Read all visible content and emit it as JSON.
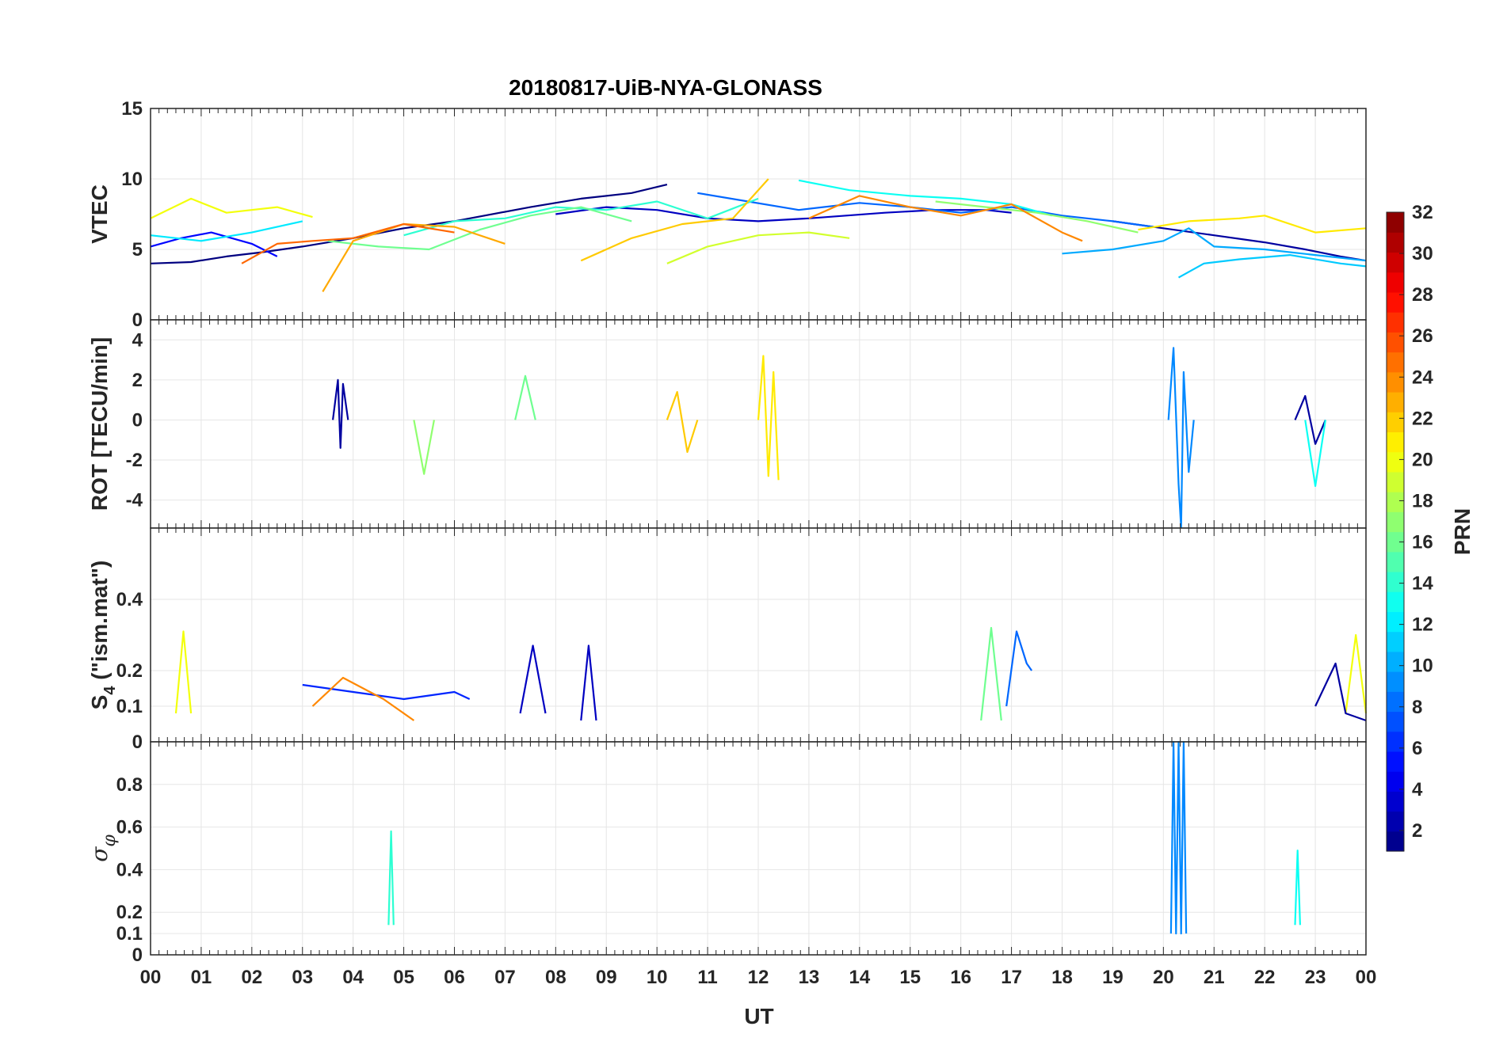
{
  "chart_data": {
    "type": "line",
    "title": "20180817-UiB-NYA-GLONASS",
    "xlabel": "UT",
    "x_range": [
      0,
      24
    ],
    "x_tick_labels": [
      "00",
      "01",
      "02",
      "03",
      "04",
      "05",
      "06",
      "07",
      "08",
      "09",
      "10",
      "11",
      "12",
      "13",
      "14",
      "15",
      "16",
      "17",
      "18",
      "19",
      "20",
      "21",
      "22",
      "23",
      "00"
    ],
    "panels": [
      {
        "id": "vtec",
        "ylabel": "VTEC",
        "ylim": [
          0,
          15
        ],
        "y_ticks": [
          0,
          5,
          10,
          15
        ],
        "y_tick_labels": [
          "0",
          "5",
          "10",
          "15"
        ],
        "series": [
          {
            "prn": 1,
            "x": [
              0,
              0.8,
              1.5,
              2.2,
              3.0,
              4.0,
              5.0,
              6.0,
              7.5,
              8.5,
              9.5,
              10.2
            ],
            "y": [
              4.0,
              4.1,
              4.5,
              4.8,
              5.2,
              5.8,
              6.5,
              7.0,
              8.0,
              8.6,
              9.0,
              9.6
            ]
          },
          {
            "prn": 3,
            "x": [
              8.0,
              9.0,
              10.0,
              11.0,
              12.0,
              13.0,
              14.5,
              15.5,
              16.5,
              17.0
            ],
            "y": [
              7.5,
              8.0,
              7.8,
              7.2,
              7.0,
              7.2,
              7.6,
              7.8,
              7.8,
              7.6
            ]
          },
          {
            "prn": 2,
            "x": [
              19.0,
              20.0,
              21.0,
              22.0,
              22.8,
              23.5,
              24.0
            ],
            "y": [
              7.0,
              6.5,
              6.0,
              5.5,
              5.0,
              4.5,
              4.2
            ]
          },
          {
            "prn": 5,
            "x": [
              0,
              0.6,
              1.2,
              2.0,
              2.5
            ],
            "y": [
              5.2,
              5.8,
              6.2,
              5.4,
              4.5
            ]
          },
          {
            "prn": 8,
            "x": [
              10.8,
              11.8,
              12.8,
              14.0,
              15.0,
              16.0,
              17.0,
              18.0,
              19.0,
              19.8
            ],
            "y": [
              9.0,
              8.4,
              7.8,
              8.3,
              8.0,
              7.6,
              8.0,
              7.4,
              7.0,
              6.6
            ]
          },
          {
            "prn": 10,
            "x": [
              18.0,
              19.0,
              20.0,
              20.5,
              21.0,
              22.0,
              23.0,
              24.0
            ],
            "y": [
              4.7,
              5.0,
              5.6,
              6.5,
              5.2,
              5.0,
              4.6,
              4.2
            ]
          },
          {
            "prn": 11,
            "x": [
              20.3,
              20.8,
              21.5,
              22.5,
              23.5,
              24.0
            ],
            "y": [
              3.0,
              4.0,
              4.3,
              4.6,
              4.0,
              3.8
            ]
          },
          {
            "prn": 12,
            "x": [
              0,
              1.0,
              2.0,
              3.0
            ],
            "y": [
              6.0,
              5.6,
              6.2,
              7.0
            ]
          },
          {
            "prn": 13,
            "x": [
              12.8,
              13.8,
              15.0,
              16.0,
              17.0,
              17.8
            ],
            "y": [
              9.9,
              9.2,
              8.8,
              8.6,
              8.2,
              7.4
            ]
          },
          {
            "prn": 14,
            "x": [
              5.0,
              6.0,
              7.0,
              8.0,
              9.0,
              10.0,
              11.0,
              12.0
            ],
            "y": [
              6.0,
              7.0,
              7.2,
              8.0,
              7.8,
              8.4,
              7.2,
              8.6
            ]
          },
          {
            "prn": 16,
            "x": [
              3.5,
              4.5,
              5.5,
              6.5,
              7.5,
              8.5,
              9.5
            ],
            "y": [
              5.6,
              5.2,
              5.0,
              6.4,
              7.4,
              8.0,
              7.0
            ]
          },
          {
            "prn": 17,
            "x": [
              15.5,
              16.5,
              17.5,
              18.5,
              19.0,
              19.5
            ],
            "y": [
              8.4,
              8.0,
              7.6,
              7.0,
              6.6,
              6.2
            ]
          },
          {
            "prn": 19,
            "x": [
              10.2,
              11.0,
              12.0,
              13.0,
              13.8
            ],
            "y": [
              4.0,
              5.2,
              6.0,
              6.2,
              5.8
            ]
          },
          {
            "prn": 20,
            "x": [
              0,
              0.8,
              1.5,
              2.5,
              3.2
            ],
            "y": [
              7.2,
              8.6,
              7.6,
              8.0,
              7.3
            ]
          },
          {
            "prn": 21,
            "x": [
              19.5,
              20.5,
              21.5,
              22.0,
              23.0,
              24.0
            ],
            "y": [
              6.4,
              7.0,
              7.2,
              7.4,
              6.2,
              6.5
            ]
          },
          {
            "prn": 22,
            "x": [
              8.5,
              9.5,
              10.5,
              11.5,
              12.2
            ],
            "y": [
              4.2,
              5.8,
              6.8,
              7.2,
              10.0
            ]
          },
          {
            "prn": 23,
            "x": [
              3.4,
              4.0,
              5.0,
              6.0,
              7.0
            ],
            "y": [
              2.0,
              5.6,
              6.8,
              6.6,
              5.4
            ]
          },
          {
            "prn": 24,
            "x": [
              13.0,
              14.0,
              15.0,
              16.0,
              17.0,
              18.0,
              18.4
            ],
            "y": [
              7.2,
              8.8,
              8.0,
              7.4,
              8.2,
              6.2,
              5.6
            ]
          },
          {
            "prn": 25,
            "x": [
              1.8,
              2.5,
              3.2,
              4.0,
              5.0,
              6.0
            ],
            "y": [
              4.0,
              5.4,
              5.6,
              5.8,
              6.8,
              6.2
            ]
          }
        ]
      },
      {
        "id": "rot",
        "ylabel": "ROT [TECU/min]",
        "ylim": [
          -5.4,
          5.0
        ],
        "y_ticks": [
          -4,
          -2,
          0,
          2,
          4
        ],
        "y_tick_labels": [
          "-4",
          "-2",
          "0",
          "2",
          "4"
        ],
        "series": [
          {
            "prn": 2,
            "x": [
              3.6,
              3.7,
              3.75,
              3.8,
              3.9
            ],
            "y": [
              0,
              2.0,
              -1.4,
              1.8,
              0
            ]
          },
          {
            "prn": 9,
            "x": [
              20.1,
              20.2,
              20.3,
              20.35,
              20.4,
              20.5,
              20.6
            ],
            "y": [
              0,
              3.6,
              -3.2,
              -5.4,
              2.4,
              -2.6,
              0
            ]
          },
          {
            "prn": 21,
            "x": [
              12.0,
              12.1,
              12.2,
              12.3,
              12.4
            ],
            "y": [
              0,
              3.2,
              -2.8,
              2.4,
              -3.0
            ]
          },
          {
            "prn": 22,
            "x": [
              10.2,
              10.4,
              10.6,
              10.8
            ],
            "y": [
              0,
              1.4,
              -1.6,
              0
            ]
          },
          {
            "prn": 2,
            "x": [
              22.6,
              22.8,
              23.0,
              23.2
            ],
            "y": [
              0,
              1.2,
              -1.2,
              0
            ]
          },
          {
            "prn": 13,
            "x": [
              22.8,
              23.0,
              23.2
            ],
            "y": [
              0,
              -3.3,
              0
            ]
          },
          {
            "prn": 17,
            "x": [
              5.2,
              5.4,
              5.6
            ],
            "y": [
              0,
              -2.7,
              0
            ]
          },
          {
            "prn": 16,
            "x": [
              7.2,
              7.4,
              7.6
            ],
            "y": [
              0,
              2.2,
              0
            ]
          }
        ]
      },
      {
        "id": "s4",
        "ylabel": "S4 (\"ism.mat\")",
        "ylim": [
          0,
          0.6
        ],
        "y_ticks": [
          0,
          0.1,
          0.2,
          0.4
        ],
        "y_tick_labels": [
          "0",
          "0.1",
          "0.2",
          "0.4"
        ],
        "series": [
          {
            "prn": 20,
            "x": [
              0.5,
              0.65,
              0.8
            ],
            "y": [
              0.08,
              0.31,
              0.08
            ]
          },
          {
            "prn": 3,
            "x": [
              7.3,
              7.55,
              7.8
            ],
            "y": [
              0.08,
              0.27,
              0.08
            ]
          },
          {
            "prn": 3,
            "x": [
              8.5,
              8.65,
              8.8
            ],
            "y": [
              0.06,
              0.27,
              0.06
            ]
          },
          {
            "prn": 16,
            "x": [
              16.4,
              16.6,
              16.8
            ],
            "y": [
              0.06,
              0.32,
              0.06
            ]
          },
          {
            "prn": 8,
            "x": [
              16.9,
              17.1,
              17.3,
              17.4
            ],
            "y": [
              0.1,
              0.31,
              0.22,
              0.2
            ]
          },
          {
            "prn": 20,
            "x": [
              23.6,
              23.8,
              24.0
            ],
            "y": [
              0.08,
              0.3,
              0.08
            ]
          },
          {
            "prn": 6,
            "x": [
              3.0,
              4.0,
              5.0,
              6.0,
              6.3
            ],
            "y": [
              0.16,
              0.14,
              0.12,
              0.14,
              0.12
            ]
          },
          {
            "prn": 24,
            "x": [
              3.2,
              3.8,
              4.6,
              5.2
            ],
            "y": [
              0.1,
              0.18,
              0.12,
              0.06
            ]
          },
          {
            "prn": 2,
            "x": [
              23.0,
              23.4,
              23.6,
              24.0
            ],
            "y": [
              0.1,
              0.22,
              0.08,
              0.06
            ]
          }
        ]
      },
      {
        "id": "sigma_phi",
        "ylabel": "σφ",
        "ylim": [
          0,
          1.0
        ],
        "y_ticks": [
          0,
          0.1,
          0.2,
          0.4,
          0.6,
          0.8
        ],
        "y_tick_labels": [
          "0",
          "0.1",
          "0.2",
          "0.4",
          "0.6",
          "0.8"
        ],
        "series": [
          {
            "prn": 9,
            "x": [
              20.15,
              20.2,
              20.25,
              20.3,
              20.35,
              20.4,
              20.45
            ],
            "y": [
              0.1,
              1.0,
              0.1,
              1.0,
              0.1,
              1.0,
              0.1
            ]
          },
          {
            "prn": 14,
            "x": [
              4.7,
              4.75,
              4.8
            ],
            "y": [
              0.14,
              0.58,
              0.14
            ]
          },
          {
            "prn": 13,
            "x": [
              22.6,
              22.65,
              22.7
            ],
            "y": [
              0.14,
              0.49,
              0.14
            ]
          }
        ]
      }
    ],
    "colorbar": {
      "label": "PRN",
      "range": [
        1,
        32
      ],
      "colormap": "jet",
      "ticks": [
        2,
        4,
        6,
        8,
        10,
        12,
        14,
        16,
        18,
        20,
        22,
        24,
        26,
        28,
        30,
        32
      ],
      "tick_labels": [
        "2",
        "4",
        "6",
        "8",
        "10",
        "12",
        "14",
        "16",
        "18",
        "20",
        "22",
        "24",
        "26",
        "28",
        "30",
        "32"
      ]
    }
  }
}
